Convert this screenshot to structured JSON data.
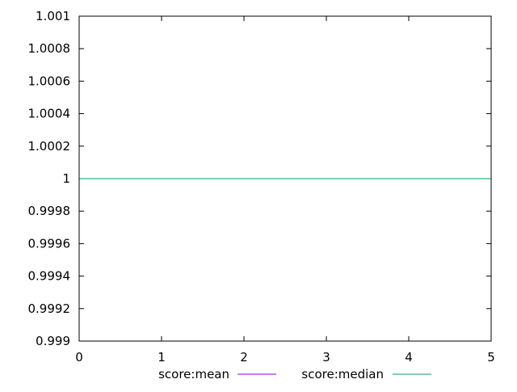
{
  "chart_data": {
    "type": "line",
    "title": "",
    "xlabel": "",
    "ylabel": "",
    "xlim": [
      0,
      5
    ],
    "ylim": [
      0.999,
      1.001
    ],
    "x_ticks": [
      0,
      1,
      2,
      3,
      4,
      5
    ],
    "x_tick_labels": [
      "0",
      "1",
      "2",
      "3",
      "4",
      "5"
    ],
    "y_ticks": [
      0.999,
      0.9992,
      0.9994,
      0.9996,
      0.9998,
      1,
      1.0002,
      1.0004,
      1.0006,
      1.0008,
      1.001
    ],
    "y_tick_labels": [
      "0.999",
      "0.9992",
      "0.9994",
      "0.9996",
      "0.9998",
      "1",
      "1.0002",
      "1.0004",
      "1.0006",
      "1.0008",
      "1.001"
    ],
    "grid": false,
    "legend_position": "bottom-center",
    "series": [
      {
        "name": "score:mean",
        "color": "#9400d3",
        "x": [
          0,
          5
        ],
        "y": [
          1,
          1
        ]
      },
      {
        "name": "score:median",
        "color": "#009e73",
        "x": [
          0,
          5
        ],
        "y": [
          1,
          1
        ]
      }
    ]
  }
}
